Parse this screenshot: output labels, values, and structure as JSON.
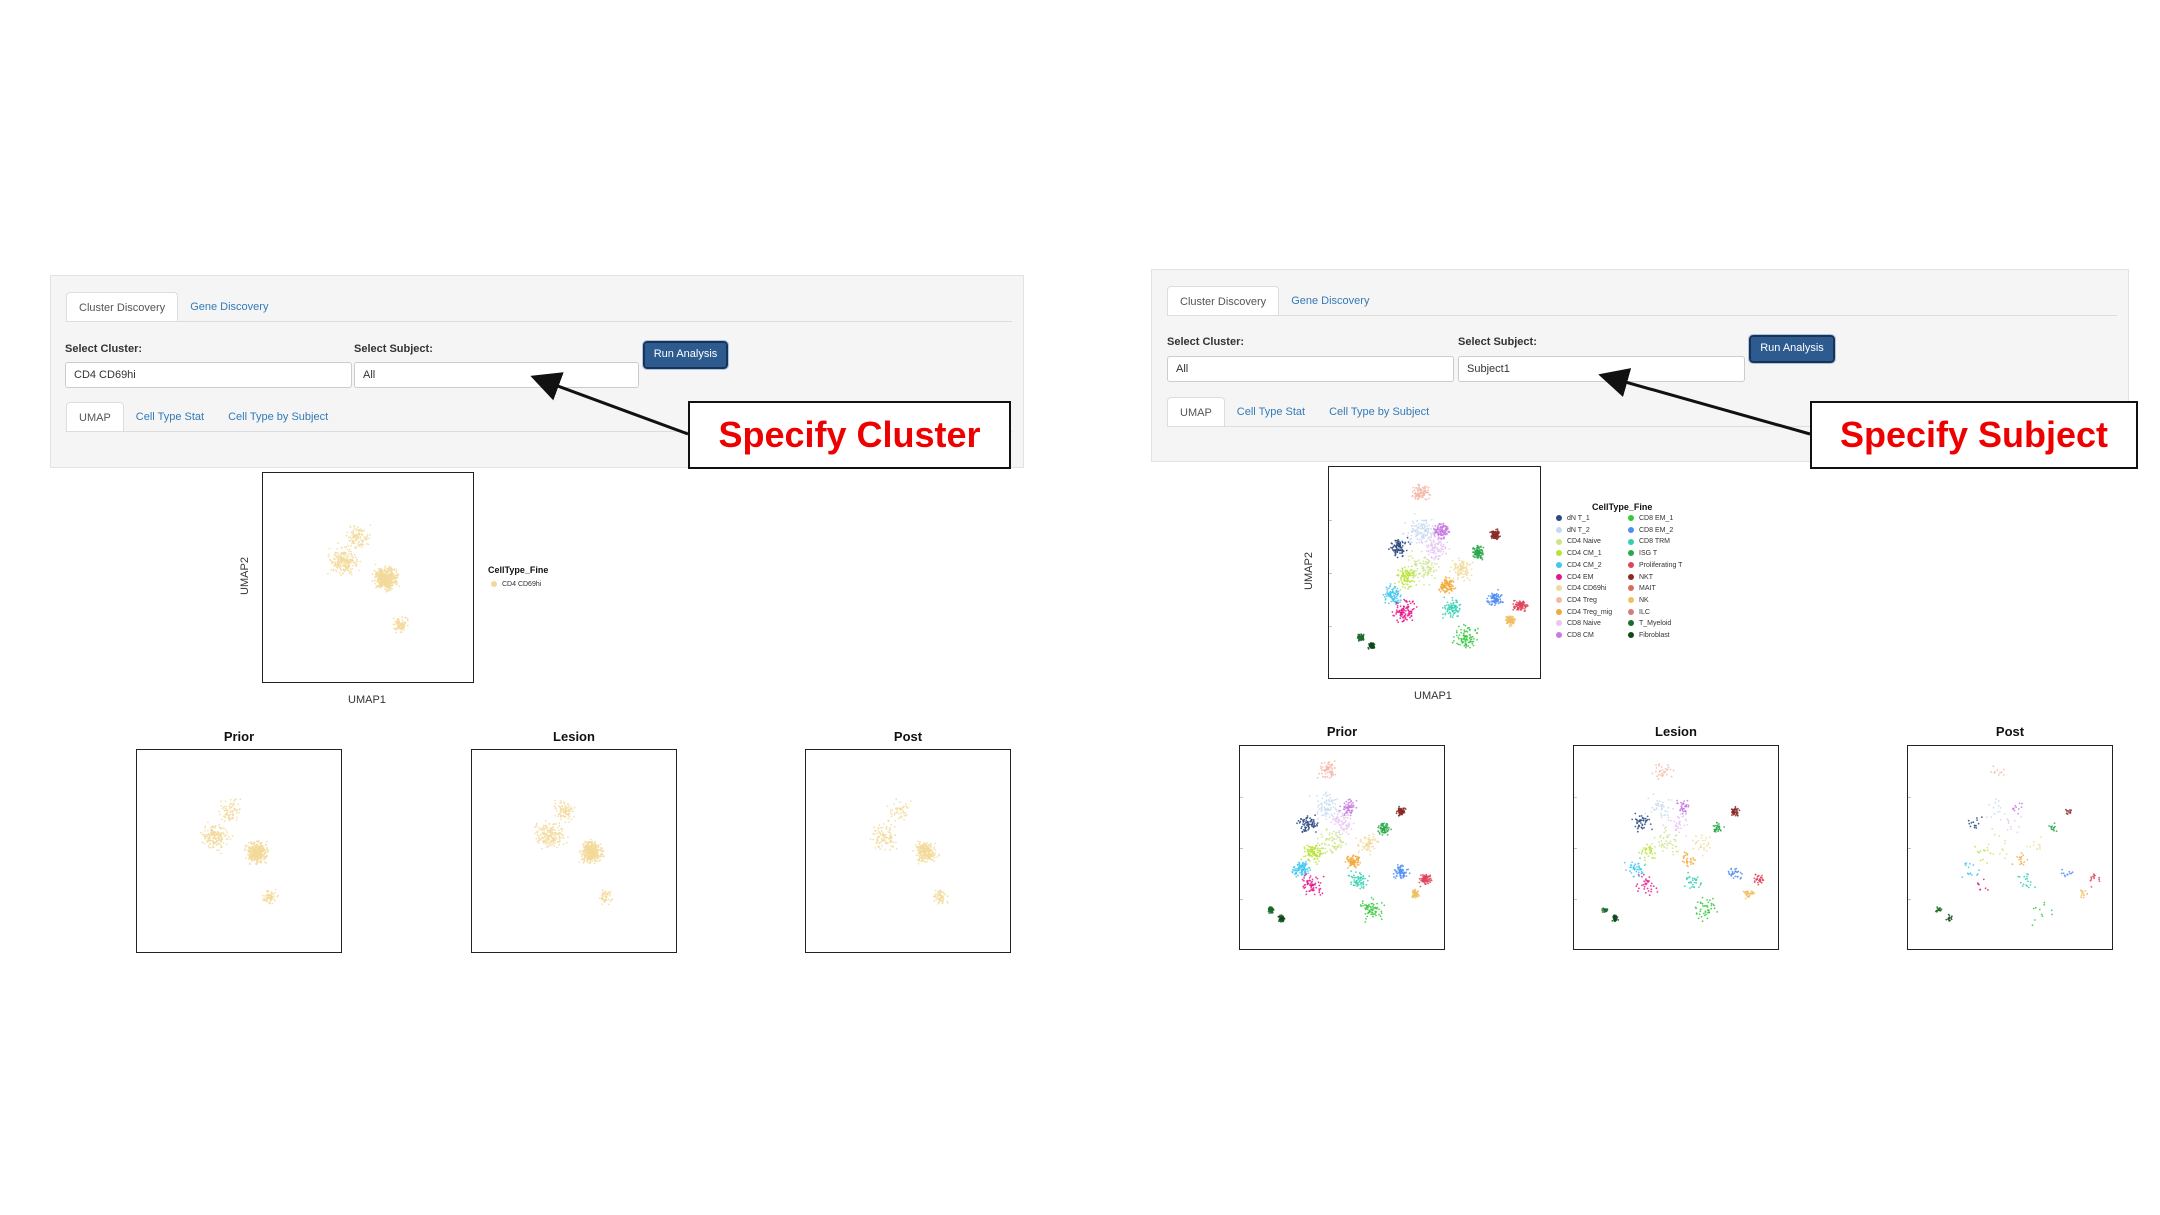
{
  "left": {
    "tabs": [
      "Cluster Discovery",
      "Gene Discovery"
    ],
    "cluster_label": "Select Cluster:",
    "cluster_value": "CD4 CD69hi",
    "subject_label": "Select Subject:",
    "subject_value": "All",
    "run_label": "Run Analysis",
    "subtabs": [
      "UMAP",
      "Cell Type Stat",
      "Cell Type by Subject"
    ],
    "callout": "Specify Cluster",
    "xaxis": "UMAP1",
    "yaxis": "UMAP2",
    "legend_title": "CellType_Fine",
    "legend": [
      {
        "label": "CD4 CD69hi",
        "color": "#f2d99a"
      }
    ],
    "facets": [
      "Prior",
      "Lesion",
      "Post"
    ]
  },
  "right": {
    "tabs": [
      "Cluster Discovery",
      "Gene Discovery"
    ],
    "cluster_label": "Select Cluster:",
    "cluster_value": "All",
    "subject_label": "Select Subject:",
    "subject_value": "Subject1",
    "run_label": "Run Analysis",
    "subtabs": [
      "UMAP",
      "Cell Type Stat",
      "Cell Type by Subject"
    ],
    "callout": "Specify Subject",
    "xaxis": "UMAP1",
    "yaxis": "UMAP2",
    "legend_title": "CellType_Fine",
    "legend": [
      {
        "label": "dN T_1",
        "color": "#2b4a7f"
      },
      {
        "label": "dN T_2",
        "color": "#c7d9ee"
      },
      {
        "label": "CD4 Naive",
        "color": "#cde58a"
      },
      {
        "label": "CD4 CM_1",
        "color": "#b8e33c"
      },
      {
        "label": "CD4 CM_2",
        "color": "#3fc7f0"
      },
      {
        "label": "CD4 EM",
        "color": "#e8148a"
      },
      {
        "label": "CD4 CD69hi",
        "color": "#f2d99a"
      },
      {
        "label": "CD4 Treg",
        "color": "#f5b8a8"
      },
      {
        "label": "CD4 Treg_mig",
        "color": "#f2a93b"
      },
      {
        "label": "CD8 Naive",
        "color": "#e7c6f2"
      },
      {
        "label": "CD8 CM",
        "color": "#c77be0"
      },
      {
        "label": "CD8 EM_1",
        "color": "#36c93e"
      },
      {
        "label": "CD8 EM_2",
        "color": "#4f8ef0"
      },
      {
        "label": "CD8 TRM",
        "color": "#35d0b2"
      },
      {
        "label": "ISG T",
        "color": "#2aa84a"
      },
      {
        "label": "Proliferating T",
        "color": "#e0445a"
      },
      {
        "label": "NKT",
        "color": "#8a2a2a"
      },
      {
        "label": "MAIT",
        "color": "#e06a5a"
      },
      {
        "label": "NK",
        "color": "#f0c060"
      },
      {
        "label": "ILC",
        "color": "#d67a7a"
      },
      {
        "label": "T_Myeloid",
        "color": "#1f6b2a"
      },
      {
        "label": "Fibroblast",
        "color": "#0f4a1a"
      }
    ],
    "facets": [
      "Prior",
      "Lesion",
      "Post"
    ]
  }
}
